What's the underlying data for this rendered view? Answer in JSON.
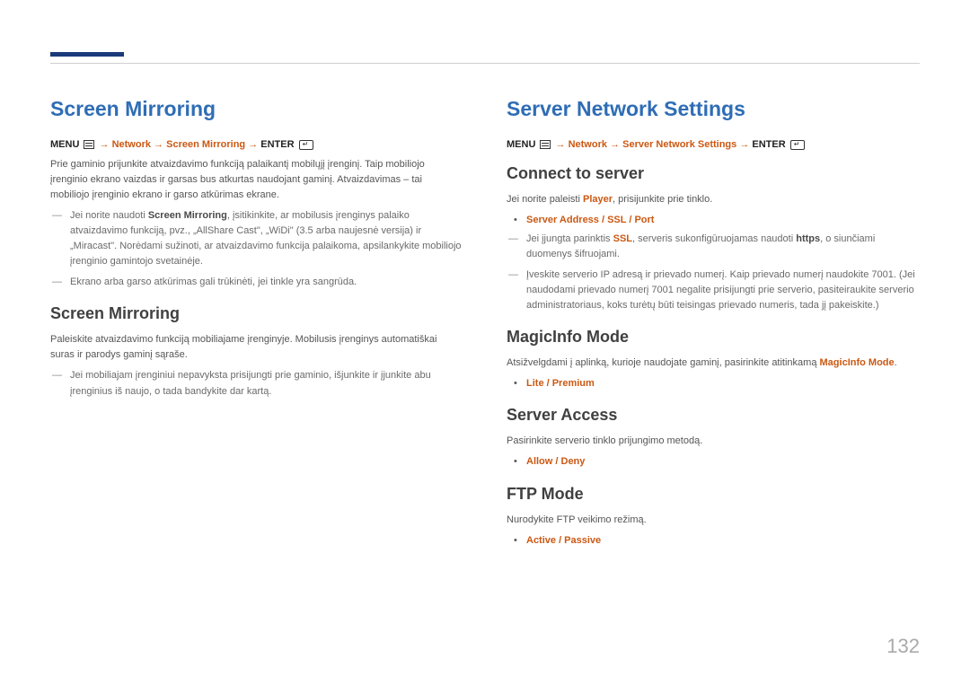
{
  "page_number": "132",
  "left": {
    "title": "Screen Mirroring",
    "path_prefix": "MENU",
    "path_parts": [
      "Network",
      "Screen Mirroring"
    ],
    "path_suffix": "ENTER",
    "intro": "Prie gaminio prijunkite atvaizdavimo funkciją palaikantį mobilųjį įrenginį. Taip mobiliojo įrenginio ekrano vaizdas ir garsas bus atkurtas naudojant gaminį. Atvaizdavimas – tai mobiliojo įrenginio ekrano ir garso atkūrimas ekrane.",
    "note1_pre": "Jei norite naudoti ",
    "note1_em": "Screen Mirroring",
    "note1_post": ", įsitikinkite, ar mobilusis įrenginys palaiko atvaizdavimo funkciją, pvz., „AllShare Cast\", „WiDi\" (3.5 arba naujesnė versija) ir „Miracast\". Norėdami sužinoti, ar atvaizdavimo funkcija palaikoma, apsilankykite mobiliojo įrenginio gamintojo svetainėje.",
    "note2": "Ekrano arba garso atkūrimas gali trūkinėti, jei tinkle yra sangrūda.",
    "sub_title": "Screen Mirroring",
    "sub_body": "Paleiskite atvaizdavimo funkciją mobiliajame įrenginyje. Mobilusis įrenginys automatiškai suras ir parodys gaminį sąraše.",
    "sub_note": "Jei mobiliajam įrenginiui nepavyksta prisijungti prie gaminio, išjunkite ir įjunkite abu įrenginius iš naujo, o tada bandykite dar kartą."
  },
  "right": {
    "title": "Server Network Settings",
    "path_prefix": "MENU",
    "path_parts": [
      "Network",
      "Server Network Settings"
    ],
    "path_suffix": "ENTER",
    "sections": [
      {
        "heading": "Connect to server",
        "body_pre": "Jei norite paleisti ",
        "body_k": "Player",
        "body_post": ", prisijunkite prie tinklo.",
        "bullet": "Server Address / SSL / Port",
        "note1_pre": "Jei įjungta parinktis ",
        "note1_k": "SSL",
        "note1_mid": ", serveris sukonfigūruojamas naudoti ",
        "note1_em": "https",
        "note1_post": ", o siunčiami duomenys šifruojami.",
        "note2": "Įveskite serverio IP adresą ir prievado numerį. Kaip prievado numerį naudokite 7001. (Jei naudodami prievado numerį 7001 negalite prisijungti prie serverio, pasiteiraukite serverio administratoriaus, koks turėtų būti teisingas prievado numeris, tada jį pakeiskite.)"
      },
      {
        "heading": "MagicInfo Mode",
        "body_pre": "Atsižvelgdami į aplinką, kurioje naudojate gaminį, pasirinkite atitinkamą ",
        "body_k": "MagicInfo Mode",
        "body_post": ".",
        "bullet": "Lite / Premium"
      },
      {
        "heading": "Server Access",
        "body": "Pasirinkite serverio tinklo prijungimo metodą.",
        "bullet": "Allow / Deny"
      },
      {
        "heading": "FTP Mode",
        "body": "Nurodykite FTP veikimo režimą.",
        "bullet": "Active / Passive"
      }
    ]
  }
}
